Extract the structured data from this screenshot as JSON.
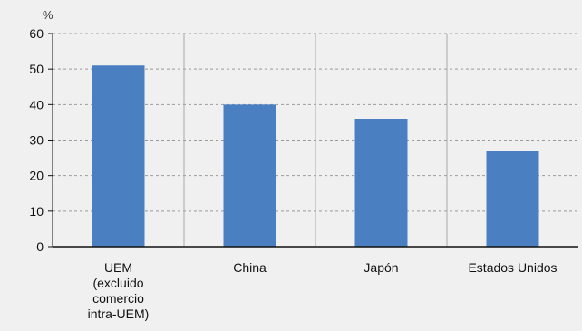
{
  "chart_data": {
    "type": "bar",
    "unit_label": "%",
    "categories": [
      "UEM\n(excluido\ncomercio\nintra-UEM)",
      "China",
      "Japón",
      "Estados Unidos"
    ],
    "values": [
      51,
      40,
      36,
      27
    ],
    "ylim": [
      0,
      60
    ],
    "yticks": [
      0,
      10,
      20,
      30,
      40,
      50,
      60
    ],
    "grid": true,
    "bar_color": "#4a7fc1",
    "grid_color": "#9a9a9a",
    "axis_color": "#111111",
    "separator_color": "#a9a9a9"
  }
}
